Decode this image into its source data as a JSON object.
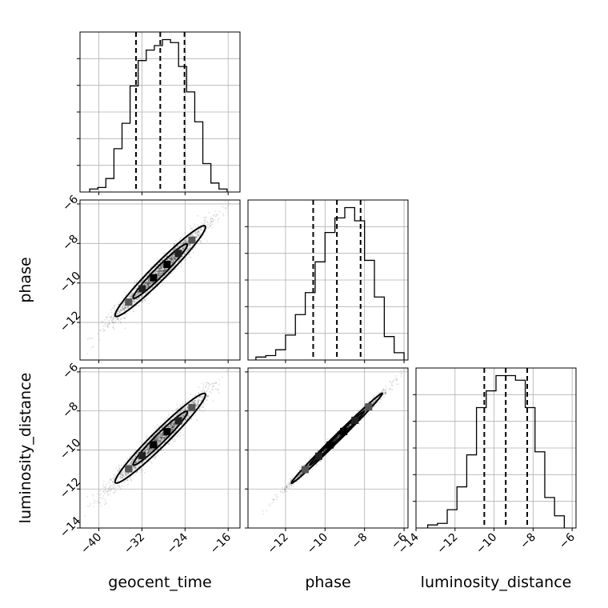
{
  "chart_data": {
    "type": "corner",
    "parameters": [
      "geocent_time",
      "phase",
      "luminosity_distance"
    ],
    "axis_labels": {
      "x": [
        "geocent_time",
        "phase",
        "luminosity_distance"
      ],
      "y": [
        "",
        "phase",
        "luminosity_distance"
      ]
    },
    "ranges": {
      "geocent_time": [
        -43.5,
        -13.8
      ],
      "phase": [
        -13.9,
        -5.8
      ],
      "luminosity_distance": [
        -14.0,
        -5.8
      ]
    },
    "ticks": {
      "geocent_time": [
        -40,
        -32,
        -24,
        -16
      ],
      "phase": [
        -12,
        -10,
        -8,
        -6
      ],
      "luminosity_distance": [
        -14,
        -12,
        -10,
        -8,
        -6
      ]
    },
    "tick_labels": {
      "geocent_time": [
        "−40",
        "−32",
        "−24",
        "−16"
      ],
      "phase": [
        "−12",
        "−10",
        "−8",
        "−6"
      ],
      "luminosity_distance": [
        "−14",
        "−12",
        "−10",
        "−8",
        "−6"
      ]
    },
    "grid": true,
    "quantiles": {
      "geocent_time": [
        -33.1,
        -28.6,
        -24.1
      ],
      "phase": [
        -10.6,
        -9.4,
        -8.2
      ],
      "luminosity_distance": [
        -10.5,
        -9.4,
        -8.3
      ]
    },
    "histograms": {
      "geocent_time": {
        "edges": [
          -41.7,
          -40.2,
          -38.7,
          -37.2,
          -35.7,
          -34.2,
          -32.7,
          -31.2,
          -29.7,
          -28.2,
          -26.7,
          -25.2,
          -23.7,
          -22.2,
          -20.7,
          -19.2,
          -17.7,
          -16.2
        ],
        "counts": [
          2,
          3,
          9,
          29,
          46,
          71,
          88,
          95,
          98,
          102,
          100,
          84,
          67,
          47,
          19,
          6,
          2
        ]
      },
      "phase": {
        "edges": [
          -13.5,
          -13.0,
          -12.5,
          -12.0,
          -11.5,
          -11.0,
          -10.5,
          -10.0,
          -9.5,
          -9.0,
          -8.5,
          -8.0,
          -7.5,
          -7.0,
          -6.5,
          -6.0
        ],
        "counts": [
          2,
          3,
          7,
          17,
          31,
          46,
          67,
          87,
          97,
          104,
          95,
          68,
          43,
          16,
          5
        ]
      },
      "luminosity_distance": {
        "edges": [
          -13.4,
          -12.9,
          -12.4,
          -11.9,
          -11.4,
          -10.9,
          -10.4,
          -9.9,
          -9.4,
          -8.9,
          -8.4,
          -7.9,
          -7.4,
          -6.9,
          -6.4
        ],
        "counts": [
          2,
          3,
          12,
          27,
          48,
          79,
          90,
          100,
          100,
          97,
          79,
          50,
          20,
          8
        ]
      }
    },
    "scatter_density": {
      "geocent_time_phase": {
        "mean": [
          -28.6,
          -9.4
        ],
        "std": [
          4.2,
          1.15
        ],
        "corr": 0.97
      },
      "geocent_time_luminosity_distance": {
        "mean": [
          -28.6,
          -9.4
        ],
        "std": [
          4.2,
          1.15
        ],
        "corr": 0.97
      },
      "phase_luminosity_distance": {
        "mean": [
          -9.4,
          -9.4
        ],
        "std": [
          1.15,
          1.15
        ],
        "corr": 0.995
      }
    }
  }
}
